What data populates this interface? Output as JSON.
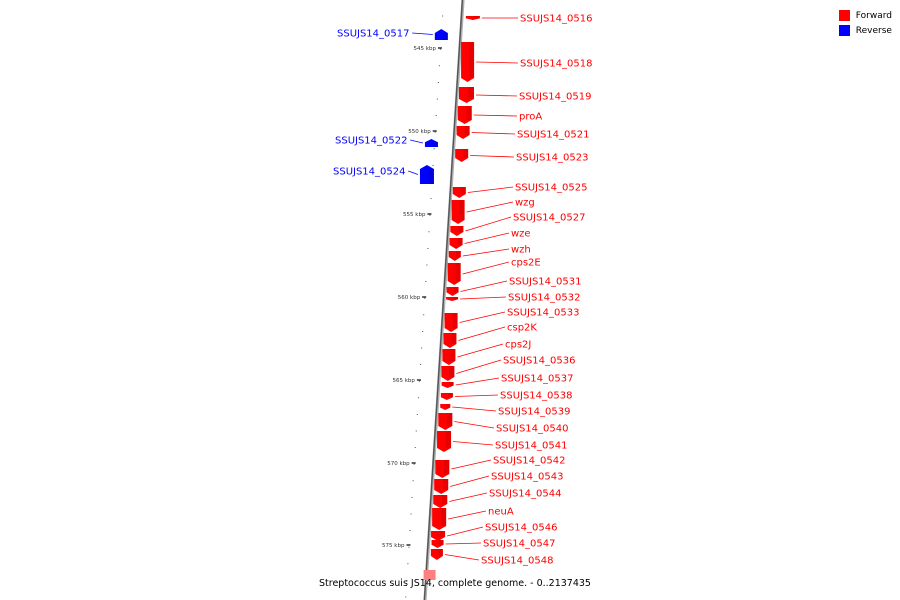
{
  "caption": "Streptococcus suis JS14, complete genome. - 0..2137435",
  "legend": [
    {
      "label": "Forward",
      "color": "#ff0000"
    },
    {
      "label": "Reverse",
      "color": "#0000ff"
    }
  ],
  "kbp_ticks": [
    "545 kbp",
    "550 kbp",
    "555 kbp",
    "560 kbp",
    "565 kbp",
    "570 kbp",
    "575 kbp"
  ],
  "genes": [
    {
      "name": "SSUJS14_0516",
      "strand": "forward"
    },
    {
      "name": "SSUJS14_0517",
      "strand": "reverse"
    },
    {
      "name": "SSUJS14_0518",
      "strand": "forward"
    },
    {
      "name": "SSUJS14_0519",
      "strand": "forward"
    },
    {
      "name": "proA",
      "strand": "forward"
    },
    {
      "name": "SSUJS14_0521",
      "strand": "forward"
    },
    {
      "name": "SSUJS14_0522",
      "strand": "reverse"
    },
    {
      "name": "SSUJS14_0523",
      "strand": "forward"
    },
    {
      "name": "SSUJS14_0524",
      "strand": "reverse"
    },
    {
      "name": "SSUJS14_0525",
      "strand": "forward"
    },
    {
      "name": "wzg",
      "strand": "forward"
    },
    {
      "name": "SSUJS14_0527",
      "strand": "forward"
    },
    {
      "name": "wze",
      "strand": "forward"
    },
    {
      "name": "wzh",
      "strand": "forward"
    },
    {
      "name": "cps2E",
      "strand": "forward"
    },
    {
      "name": "SSUJS14_0531",
      "strand": "forward"
    },
    {
      "name": "SSUJS14_0532",
      "strand": "forward"
    },
    {
      "name": "SSUJS14_0533",
      "strand": "forward"
    },
    {
      "name": "csp2K",
      "strand": "forward"
    },
    {
      "name": "cps2J",
      "strand": "forward"
    },
    {
      "name": "SSUJS14_0536",
      "strand": "forward"
    },
    {
      "name": "SSUJS14_0537",
      "strand": "forward"
    },
    {
      "name": "SSUJS14_0538",
      "strand": "forward"
    },
    {
      "name": "SSUJS14_0539",
      "strand": "forward"
    },
    {
      "name": "SSUJS14_0540",
      "strand": "forward"
    },
    {
      "name": "SSUJS14_0541",
      "strand": "forward"
    },
    {
      "name": "SSUJS14_0542",
      "strand": "forward"
    },
    {
      "name": "SSUJS14_0543",
      "strand": "forward"
    },
    {
      "name": "SSUJS14_0544",
      "strand": "forward"
    },
    {
      "name": "neuA",
      "strand": "forward"
    },
    {
      "name": "SSUJS14_0546",
      "strand": "forward"
    },
    {
      "name": "SSUJS14_0547",
      "strand": "forward"
    },
    {
      "name": "SSUJS14_0548",
      "strand": "forward"
    }
  ]
}
